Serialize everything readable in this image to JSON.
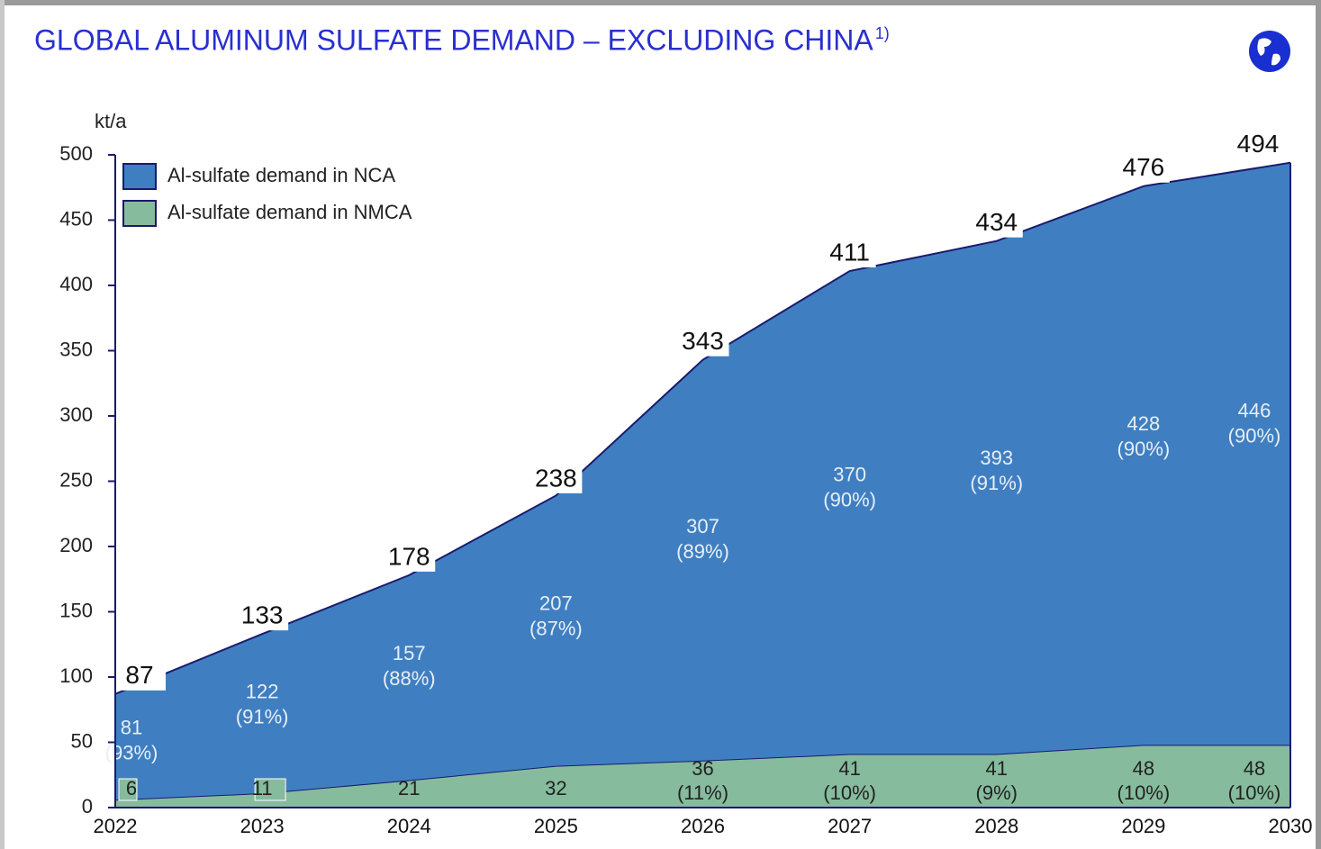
{
  "chart_data": {
    "type": "stacked_area",
    "title": "GLOBAL ALUMINUM SULFATE DEMAND – EXCLUDING CHINA",
    "title_note": "1)",
    "y_label": "kt/a",
    "categories": [
      "2022",
      "2023",
      "2024",
      "2025",
      "2026",
      "2027",
      "2028",
      "2029",
      "2030"
    ],
    "series": [
      {
        "name": "Al-sulfate demand in NMCA",
        "color": "#86bb9d",
        "values": [
          6,
          11,
          21,
          32,
          36,
          41,
          41,
          48,
          48
        ],
        "shares": [
          null,
          null,
          null,
          null,
          11,
          10,
          9,
          10,
          10
        ],
        "share_labels": [
          null,
          null,
          null,
          null,
          "(11%)",
          "(10%)",
          "(9%)",
          "(10%)",
          "(10%)"
        ]
      },
      {
        "name": "Al-sulfate demand in NCA",
        "color": "#3f7fc1",
        "values": [
          81,
          122,
          157,
          207,
          307,
          370,
          393,
          428,
          446
        ],
        "shares": [
          93,
          91,
          88,
          87,
          89,
          90,
          91,
          90,
          90
        ],
        "share_labels": [
          "(93%)",
          "(91%)",
          "(88%)",
          "(87%)",
          "(89%)",
          "(90%)",
          "(91%)",
          "(90%)",
          "(90%)"
        ]
      }
    ],
    "totals": [
      87,
      133,
      178,
      238,
      343,
      411,
      434,
      476,
      494
    ],
    "ylim": [
      0,
      500
    ],
    "yticks": [
      0,
      50,
      100,
      150,
      200,
      250,
      300,
      350,
      400,
      450,
      500
    ],
    "legend": "upper left"
  }
}
